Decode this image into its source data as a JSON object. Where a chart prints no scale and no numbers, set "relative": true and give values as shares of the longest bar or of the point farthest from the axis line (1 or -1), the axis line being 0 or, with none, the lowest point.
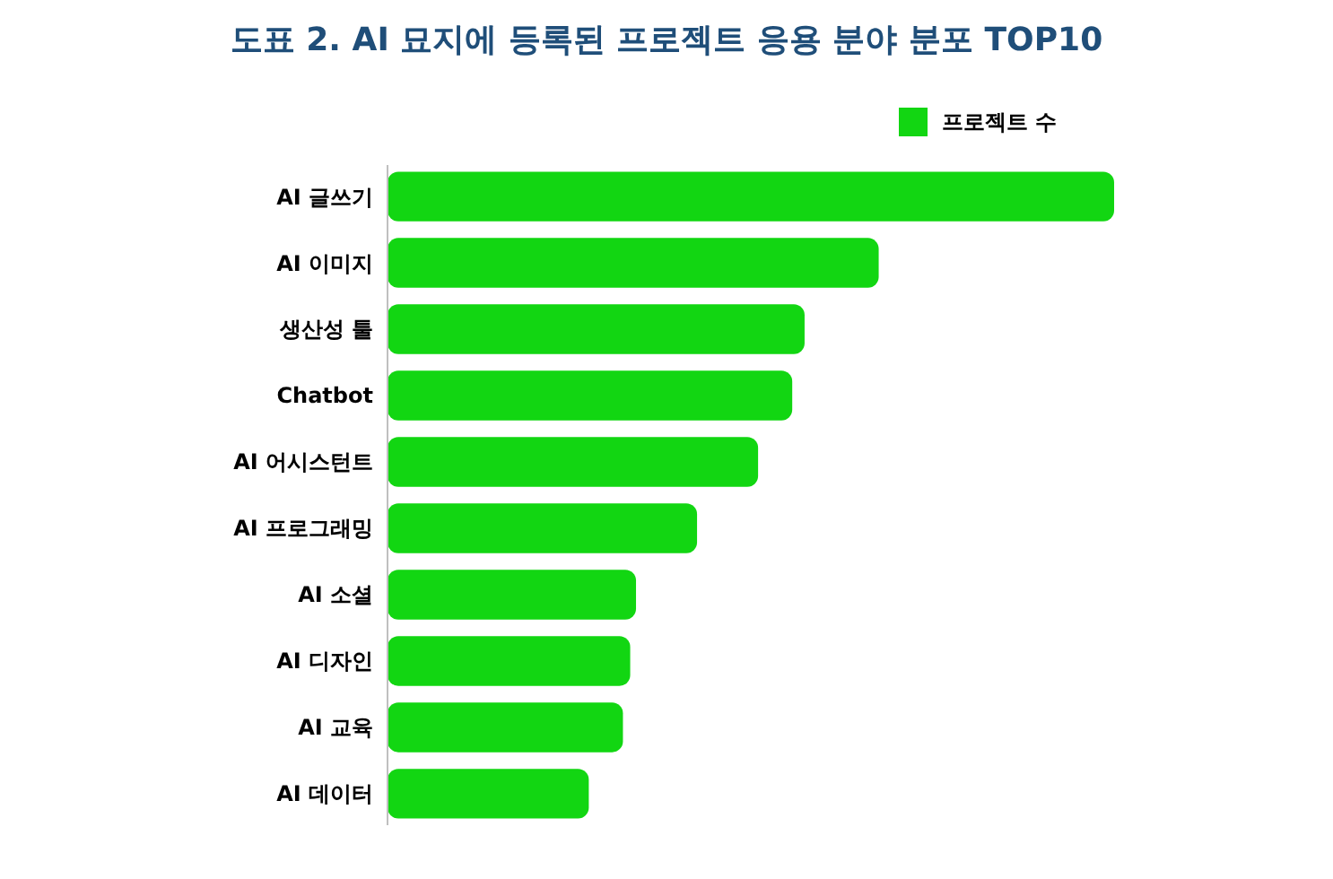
{
  "chart_data": {
    "type": "bar",
    "orientation": "horizontal",
    "relative": true,
    "title": "도표 2. AI 묘지에 등록된 프로젝트 응용 분야 분포 TOP10",
    "categories": [
      "AI 글쓰기",
      "AI 이미지",
      "생산성 툴",
      "Chatbot",
      "AI 어시스턴트",
      "AI 프로그래밍",
      "AI 소셜",
      "AI 디자인",
      "AI 교육",
      "AI 데이터"
    ],
    "series": [
      {
        "name": "프로젝트 수",
        "color": "#12d612",
        "values": [
          1,
          0.676,
          0.574,
          0.557,
          0.51,
          0.426,
          0.342,
          0.334,
          0.324,
          0.277
        ]
      }
    ],
    "legend": "top right"
  }
}
